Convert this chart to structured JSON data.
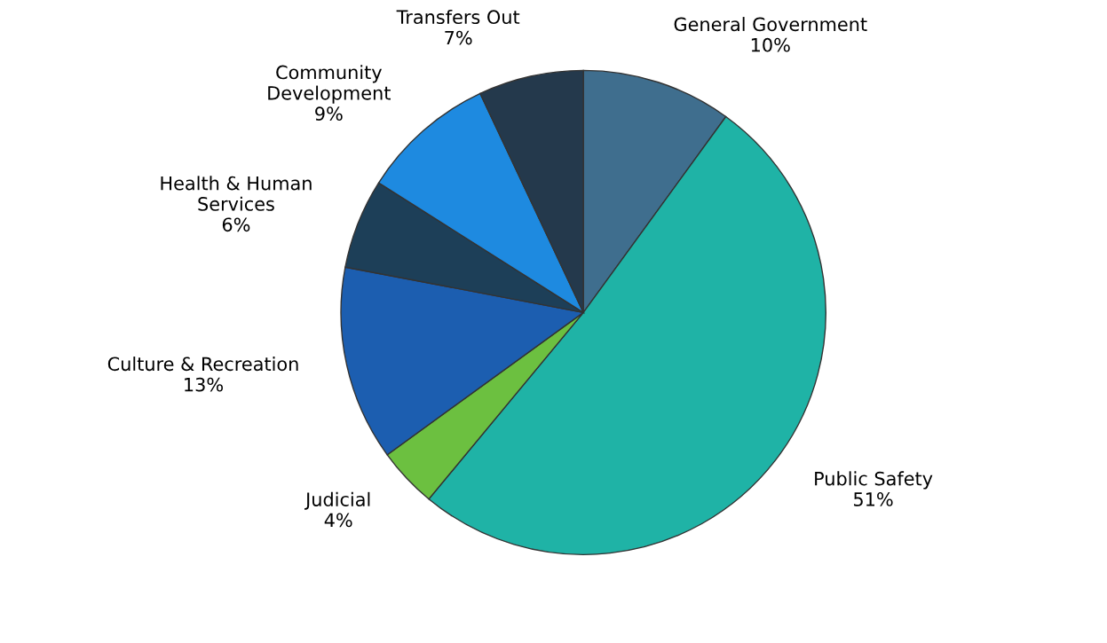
{
  "chart_data": {
    "type": "pie",
    "categories": [
      "General Government",
      "Public Safety",
      "Judicial",
      "Culture & Recreation",
      "Health & Human\nServices",
      "Community\nDevelopment",
      "Transfers Out"
    ],
    "values": [
      10,
      51,
      4,
      13,
      6,
      9,
      7
    ],
    "value_labels": [
      "10%",
      "51%",
      "4%",
      "13%",
      "6%",
      "9%",
      "7%"
    ],
    "colors": [
      "#3f6e8e",
      "#1fb3a6",
      "#6cc040",
      "#1c5eb0",
      "#1d3f58",
      "#1e8ae0",
      "#24394c"
    ],
    "legend": false
  }
}
